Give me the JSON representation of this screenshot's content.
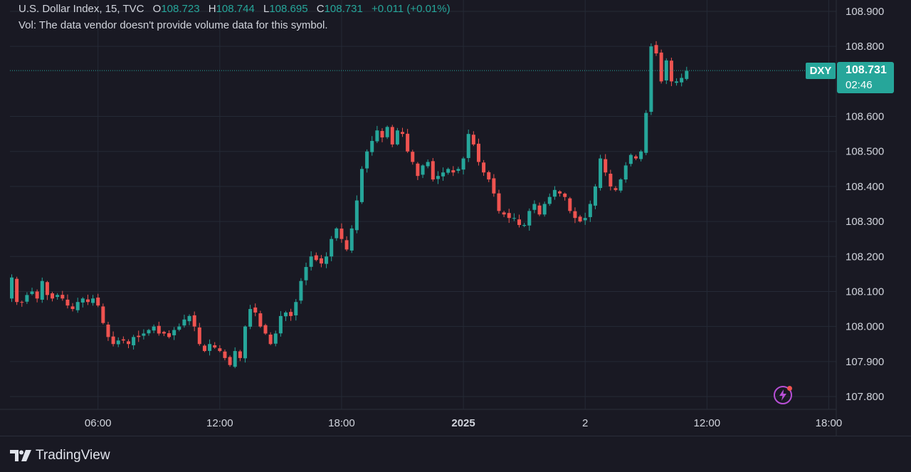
{
  "legend": {
    "symbol": "U.S. Dollar Index, 15, TVC",
    "open_label": "O",
    "open": "108.723",
    "high_label": "H",
    "high": "108.744",
    "low_label": "L",
    "low": "108.695",
    "close_label": "C",
    "close": "108.731",
    "change": "+0.011 (+0.01%)"
  },
  "volume_note": "Vol: The data vendor doesn't provide volume data for this symbol.",
  "price_tag": {
    "symbol": "DXY",
    "price": "108.731",
    "countdown": "02:46"
  },
  "brand": "TradingView",
  "colors": {
    "up": "#26a69a",
    "down": "#ef5350",
    "background": "#191923",
    "grid": "#252a36",
    "text": "#d1d4dc"
  },
  "icons": {
    "alert": "lightning-alert-icon",
    "logo": "tradingview-logo-icon"
  },
  "chart_data": {
    "type": "candlestick",
    "interval": "15",
    "yticks": [
      "108.900",
      "108.800",
      "108.600",
      "108.500",
      "108.400",
      "108.300",
      "108.200",
      "108.100",
      "108.000",
      "107.900",
      "107.800"
    ],
    "ytick_values": [
      108.9,
      108.8,
      108.6,
      108.5,
      108.4,
      108.3,
      108.2,
      108.1,
      108.0,
      107.9,
      107.8
    ],
    "ylim": [
      107.78,
      108.92
    ],
    "xticks": [
      {
        "label": "06:00",
        "bar": 17
      },
      {
        "label": "12:00",
        "bar": 41
      },
      {
        "label": "18:00",
        "bar": 65
      },
      {
        "label": "2025",
        "bar": 89,
        "bold": true
      },
      {
        "label": "2",
        "bar": 113
      },
      {
        "label": "12:00",
        "bar": 137
      },
      {
        "label": "18:00",
        "bar": 161
      }
    ],
    "last_price": 108.731,
    "closes": [
      108.14,
      108.07,
      108.07,
      108.09,
      108.1,
      108.08,
      108.13,
      108.09,
      108.08,
      108.09,
      108.08,
      108.06,
      108.05,
      108.07,
      108.08,
      108.07,
      108.08,
      108.06,
      108.01,
      107.97,
      107.95,
      107.96,
      107.96,
      107.95,
      107.97,
      107.97,
      107.98,
      107.99,
      108.0,
      107.98,
      107.98,
      107.97,
      107.99,
      108.0,
      108.02,
      108.03,
      108.0,
      107.95,
      107.93,
      107.95,
      107.94,
      107.93,
      107.91,
      107.89,
      107.93,
      107.91,
      108.0,
      108.05,
      108.04,
      108.0,
      107.98,
      107.95,
      107.98,
      108.03,
      108.04,
      108.03,
      108.07,
      108.13,
      108.17,
      108.2,
      108.19,
      108.18,
      108.2,
      108.25,
      108.28,
      108.25,
      108.22,
      108.28,
      108.36,
      108.45,
      108.5,
      108.53,
      108.56,
      108.54,
      108.57,
      108.52,
      108.56,
      108.55,
      108.5,
      108.47,
      108.43,
      108.46,
      108.47,
      108.42,
      108.43,
      108.44,
      108.45,
      108.44,
      108.45,
      108.48,
      108.55,
      108.52,
      108.47,
      108.44,
      108.42,
      108.38,
      108.33,
      108.32,
      108.31,
      108.31,
      108.29,
      108.29,
      108.33,
      108.35,
      108.32,
      108.35,
      108.37,
      108.39,
      108.38,
      108.37,
      108.33,
      108.31,
      108.3,
      108.31,
      108.35,
      108.4,
      108.48,
      108.44,
      108.4,
      108.39,
      108.42,
      108.46,
      108.49,
      108.48,
      108.5,
      108.61,
      108.8,
      108.78,
      108.7,
      108.76,
      108.7,
      108.7,
      108.71,
      108.73
    ]
  }
}
